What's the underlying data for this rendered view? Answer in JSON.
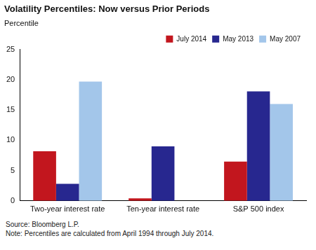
{
  "chart_data": {
    "type": "bar",
    "title": "Volatility Percentiles: Now versus Prior Periods",
    "ylabel": "Percentile",
    "categories": [
      "Two-year interest rate",
      "Ten-year interest rate",
      "S&P 500 index"
    ],
    "series": [
      {
        "name": "July 2014",
        "color": "#c2161e",
        "values": [
          8.2,
          0.4,
          6.5
        ]
      },
      {
        "name": "May 2013",
        "color": "#27278f",
        "values": [
          2.8,
          9.0,
          18.1
        ]
      },
      {
        "name": "May 2007",
        "color": "#a3c6ea",
        "values": [
          19.7,
          null,
          16.0
        ]
      }
    ],
    "ylim": [
      0,
      25
    ],
    "yticks": [
      0,
      5,
      10,
      15,
      20,
      25
    ],
    "grid": false,
    "legend": "top-right",
    "annotations": [
      "Source: Bloomberg L.P.",
      "Note: Percentiles are calculated from April 1994 through July 2014."
    ]
  }
}
